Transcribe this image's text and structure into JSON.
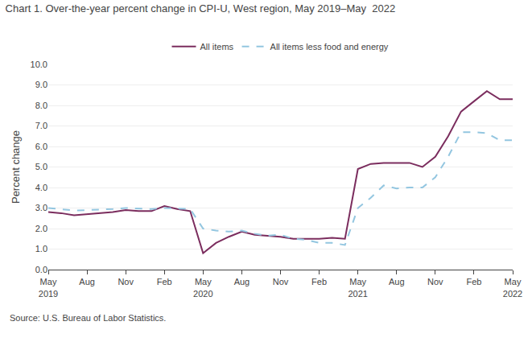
{
  "chart_data": {
    "type": "line",
    "title": "Chart 1. Over-the-year percent change in CPI-U, West region, May 2019–May  2022",
    "ylabel": "Percent change",
    "annotations": [
      "Source: U.S. Bureau of Labor Statistics."
    ],
    "categories": [
      "May\n2019",
      null,
      null,
      "Aug",
      null,
      null,
      "Nov",
      null,
      null,
      "Feb",
      null,
      null,
      "May\n2020",
      null,
      null,
      "Aug",
      null,
      null,
      "Nov",
      null,
      null,
      "Feb",
      null,
      null,
      "May\n2021",
      null,
      null,
      "Aug",
      null,
      null,
      "Nov",
      null,
      null,
      "Feb",
      null,
      null,
      "May\n2022"
    ],
    "series": [
      {
        "name": "All items",
        "color": "#7B2D5E",
        "line_style": "solid",
        "values": [
          2.8,
          2.75,
          2.65,
          2.7,
          2.75,
          2.8,
          2.9,
          2.85,
          2.85,
          3.1,
          2.95,
          2.85,
          0.8,
          1.3,
          1.6,
          1.85,
          1.7,
          1.65,
          1.6,
          1.5,
          1.5,
          1.5,
          1.55,
          1.5,
          4.9,
          5.15,
          5.2,
          5.2,
          5.2,
          5.0,
          5.5,
          6.5,
          7.7,
          8.2,
          8.7,
          8.3,
          8.3
        ]
      },
      {
        "name": "All items less food and energy",
        "color": "#93C6E0",
        "line_style": "dashed",
        "values": [
          3.0,
          2.95,
          2.88,
          2.9,
          2.92,
          2.95,
          3.0,
          2.98,
          2.95,
          3.0,
          2.98,
          2.95,
          2.0,
          1.9,
          1.85,
          1.9,
          1.75,
          1.65,
          1.7,
          1.5,
          1.45,
          1.3,
          1.3,
          1.2,
          3.0,
          3.5,
          4.1,
          3.95,
          4.0,
          4.0,
          4.5,
          5.5,
          6.7,
          6.7,
          6.65,
          6.3,
          6.3
        ]
      }
    ],
    "ylim": [
      0.0,
      10.0
    ],
    "yticks": [
      {
        "value": 0.0,
        "label": "0.0"
      },
      {
        "value": 1.0,
        "label": "1.0"
      },
      {
        "value": 2.0,
        "label": "2.0"
      },
      {
        "value": 3.0,
        "label": "3.0"
      },
      {
        "value": 4.0,
        "label": "4.0"
      },
      {
        "value": 5.0,
        "label": "5.0"
      },
      {
        "value": 6.0,
        "label": "6.0"
      },
      {
        "value": 7.0,
        "label": "7.0"
      },
      {
        "value": 8.0,
        "label": "8.0"
      },
      {
        "value": 9.0,
        "label": "9.0"
      },
      {
        "value": 10.0,
        "label": "10.0"
      }
    ],
    "grid": true
  }
}
